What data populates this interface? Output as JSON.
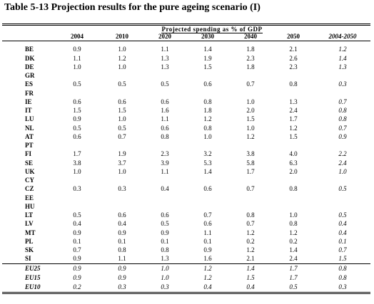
{
  "title": "Table 5-13 Projection results for the pure ageing scenario (I)",
  "header": {
    "group_label": "Projected spending as % of GDP",
    "years": [
      "2004",
      "2010",
      "2020",
      "2030",
      "2040",
      "2050",
      "2004-2050"
    ]
  },
  "rows": [
    {
      "code": "BE",
      "v": [
        "0.9",
        "1.0",
        "1.1",
        "1.4",
        "1.8",
        "2.1",
        "1.2"
      ]
    },
    {
      "code": "DK",
      "v": [
        "1.1",
        "1.2",
        "1.3",
        "1.9",
        "2.3",
        "2.6",
        "1.4"
      ]
    },
    {
      "code": "DE",
      "v": [
        "1.0",
        "1.0",
        "1.3",
        "1.5",
        "1.8",
        "2.3",
        "1.3"
      ]
    },
    {
      "code": "GR",
      "v": [
        "",
        "",
        "",
        "",
        "",
        "",
        ""
      ]
    },
    {
      "code": "ES",
      "v": [
        "0.5",
        "0.5",
        "0.5",
        "0.6",
        "0.7",
        "0.8",
        "0.3"
      ]
    },
    {
      "code": "FR",
      "v": [
        "",
        "",
        "",
        "",
        "",
        "",
        ""
      ]
    },
    {
      "code": "IE",
      "v": [
        "0.6",
        "0.6",
        "0.6",
        "0.8",
        "1.0",
        "1.3",
        "0.7"
      ]
    },
    {
      "code": "IT",
      "v": [
        "1.5",
        "1.5",
        "1.6",
        "1.8",
        "2.0",
        "2.4",
        "0.8"
      ]
    },
    {
      "code": "LU",
      "v": [
        "0.9",
        "1.0",
        "1.1",
        "1.2",
        "1.5",
        "1.7",
        "0.8"
      ]
    },
    {
      "code": "NL",
      "v": [
        "0.5",
        "0.5",
        "0.6",
        "0.8",
        "1.0",
        "1.2",
        "0.7"
      ]
    },
    {
      "code": "AT",
      "v": [
        "0.6",
        "0.7",
        "0.8",
        "1.0",
        "1.2",
        "1.5",
        "0.9"
      ]
    },
    {
      "code": "PT",
      "v": [
        "",
        "",
        "",
        "",
        "",
        "",
        ""
      ]
    },
    {
      "code": "FI",
      "v": [
        "1.7",
        "1.9",
        "2.3",
        "3.2",
        "3.8",
        "4.0",
        "2.2"
      ]
    },
    {
      "code": "SE",
      "v": [
        "3.8",
        "3.7",
        "3.9",
        "5.3",
        "5.8",
        "6.3",
        "2.4"
      ]
    },
    {
      "code": "UK",
      "v": [
        "1.0",
        "1.0",
        "1.1",
        "1.4",
        "1.7",
        "2.0",
        "1.0"
      ]
    },
    {
      "code": "CY",
      "v": [
        "",
        "",
        "",
        "",
        "",
        "",
        ""
      ]
    },
    {
      "code": "CZ",
      "v": [
        "0.3",
        "0.3",
        "0.4",
        "0.6",
        "0.7",
        "0.8",
        "0.5"
      ]
    },
    {
      "code": "EE",
      "v": [
        "",
        "",
        "",
        "",
        "",
        "",
        ""
      ]
    },
    {
      "code": "HU",
      "v": [
        "",
        "",
        "",
        "",
        "",
        "",
        ""
      ]
    },
    {
      "code": "LT",
      "v": [
        "0.5",
        "0.6",
        "0.6",
        "0.7",
        "0.8",
        "1.0",
        "0.5"
      ]
    },
    {
      "code": "LV",
      "v": [
        "0.4",
        "0.4",
        "0.5",
        "0.6",
        "0.7",
        "0.8",
        "0.4"
      ]
    },
    {
      "code": "MT",
      "v": [
        "0.9",
        "0.9",
        "0.9",
        "1.1",
        "1.2",
        "1.2",
        "0.4"
      ]
    },
    {
      "code": "PL",
      "v": [
        "0.1",
        "0.1",
        "0.1",
        "0.1",
        "0.2",
        "0.2",
        "0.1"
      ]
    },
    {
      "code": "SK",
      "v": [
        "0.7",
        "0.8",
        "0.8",
        "0.9",
        "1.2",
        "1.4",
        "0.7"
      ]
    },
    {
      "code": "SI",
      "v": [
        "0.9",
        "1.1",
        "1.3",
        "1.6",
        "2.1",
        "2.4",
        "1.5"
      ]
    }
  ],
  "aggregates": [
    {
      "code": "EU25",
      "v": [
        "0.9",
        "0.9",
        "1.0",
        "1.2",
        "1.4",
        "1.7",
        "0.8"
      ]
    },
    {
      "code": "EU15",
      "v": [
        "0.9",
        "0.9",
        "1.0",
        "1.2",
        "1.5",
        "1.7",
        "0.8"
      ]
    },
    {
      "code": "EU10",
      "v": [
        "0.2",
        "0.3",
        "0.3",
        "0.4",
        "0.4",
        "0.5",
        "0.3"
      ]
    }
  ]
}
